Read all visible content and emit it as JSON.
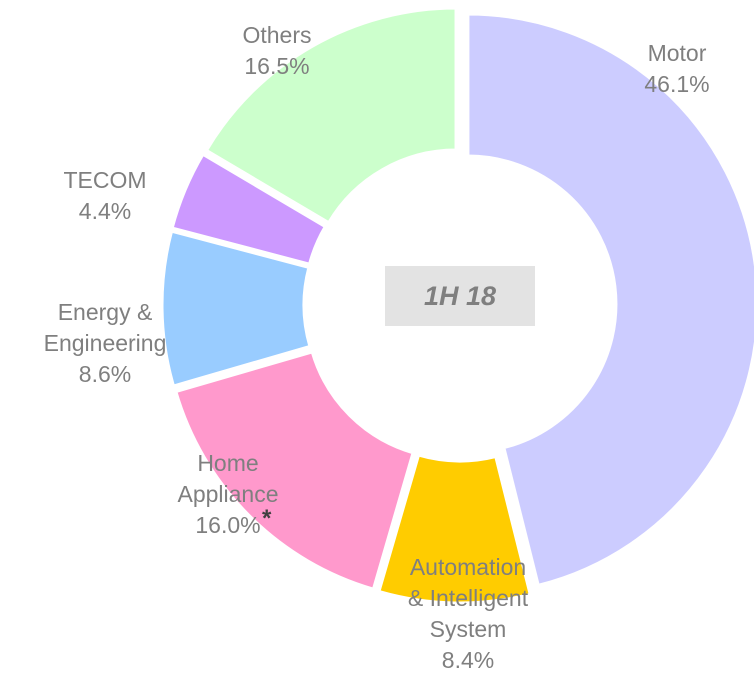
{
  "chart_data": {
    "type": "donut",
    "center_label": "1H 18",
    "categories": [
      "Motor",
      "Automation\n& Intelligent\nSystem",
      "Home\nAppliance",
      "Energy &\nEngineering",
      "TECOM",
      "Others"
    ],
    "values": [
      46.1,
      8.4,
      16.0,
      8.6,
      4.4,
      16.5
    ],
    "value_labels": [
      "46.1%",
      "8.4%",
      "16.0%",
      "8.6%",
      "4.4%",
      "16.5%"
    ],
    "colors": [
      "#ccccff",
      "#ffcc00",
      "#ff99cc",
      "#99ccff",
      "#cc99ff",
      "#ccffcc"
    ],
    "annotation": "*"
  }
}
